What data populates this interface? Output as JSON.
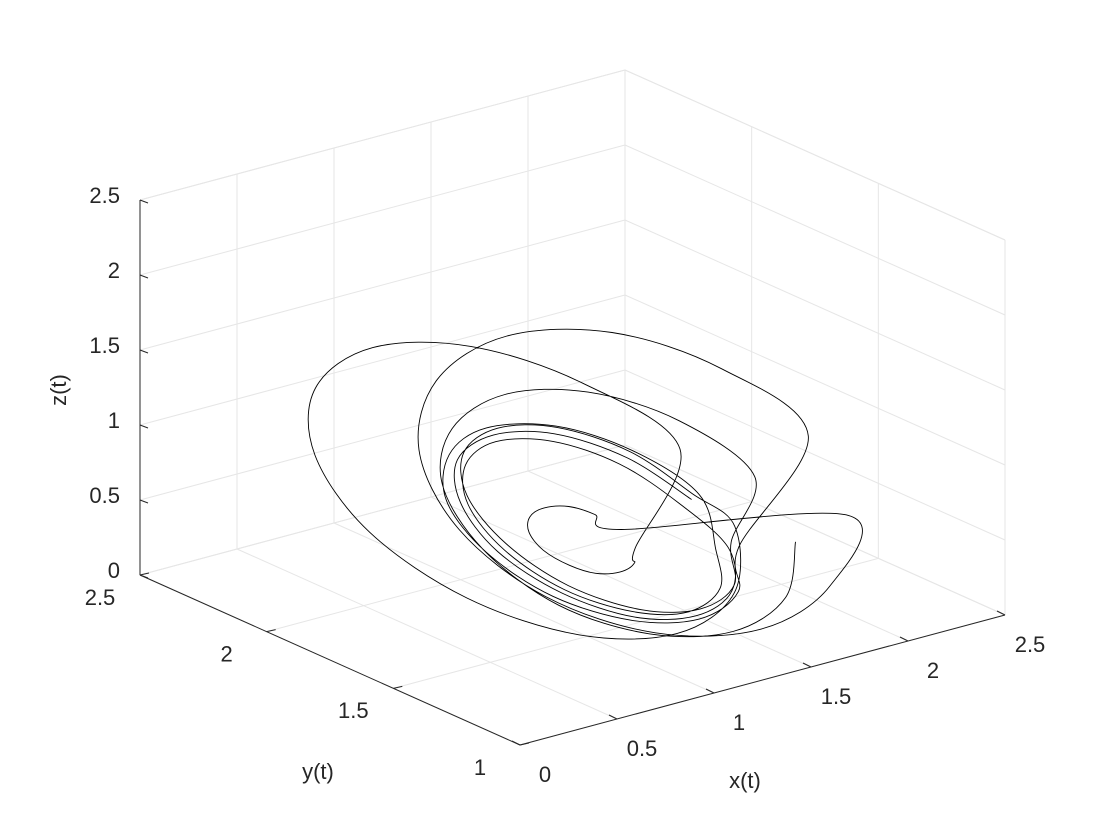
{
  "chart_data": {
    "type": "line3d",
    "xlabel": "x(t)",
    "ylabel": "y(t)",
    "zlabel": "z(t)",
    "color": "#000000",
    "grid": true,
    "xlim": [
      0,
      2.5
    ],
    "ylim": [
      1,
      2.5
    ],
    "zlim": [
      0,
      2.5
    ],
    "xticks": [
      0,
      0.5,
      1,
      1.5,
      2,
      2.5
    ],
    "yticks": [
      1,
      1.5,
      2,
      2.5
    ],
    "zticks": [
      0,
      0.5,
      1,
      1.5,
      2,
      2.5
    ],
    "x": [
      1.89,
      1.82,
      1.64,
      1.39,
      1.14,
      0.96,
      0.89,
      0.96,
      1.14,
      1.39,
      1.64,
      1.82,
      1.8,
      1.74,
      1.58,
      1.35,
      1.13,
      0.96,
      0.9,
      0.96,
      1.13,
      1.35,
      1.58,
      1.74,
      1.97,
      1.9,
      1.7,
      1.42,
      1.15,
      0.94,
      0.87,
      0.94,
      1.15,
      1.42,
      1.7,
      1.9,
      2.4,
      2.28,
      1.95,
      1.5,
      1.05,
      0.72,
      0.6,
      0.72,
      1.05,
      1.5,
      1.95,
      2.28,
      1.5,
      1.47,
      1.4,
      1.3,
      1.2,
      1.13,
      1.1,
      1.13,
      1.2,
      1.3,
      1.4,
      1.47,
      2,
      1.89,
      1.6,
      1.2,
      0.8,
      0.51,
      0.4,
      0.51,
      0.8,
      1.2,
      1.6,
      1.89,
      1.88,
      1.82,
      1.64,
      1.4,
      1.16,
      0.98,
      0.92,
      0.98,
      1.16,
      1.4,
      1.64,
      1.82,
      2.15,
      2.06,
      1.8,
      1.45,
      1.1,
      0.84,
      0.75,
      0.84,
      1.1,
      1.45,
      1.8,
      2.06
    ],
    "y": [
      1.77,
      1.97,
      2.12,
      2.17,
      2.12,
      1.97,
      1.77,
      1.57,
      1.42,
      1.37,
      1.42,
      1.57,
      1.75,
      1.94,
      2.08,
      2.13,
      2.08,
      1.94,
      1.75,
      1.56,
      1.42,
      1.37,
      1.42,
      1.56,
      1.8,
      2.01,
      2.16,
      2.22,
      2.16,
      2.01,
      1.8,
      1.59,
      1.44,
      1.38,
      1.44,
      1.59,
      1.7,
      1.95,
      2.13,
      2.2,
      2.13,
      1.95,
      1.7,
      1.45,
      1.27,
      1.2,
      1.27,
      1.45,
      1.75,
      1.83,
      1.88,
      1.9,
      1.88,
      1.83,
      1.75,
      1.67,
      1.62,
      1.6,
      1.62,
      1.67,
      1.9,
      2.2,
      2.42,
      2.5,
      2.42,
      2.2,
      1.9,
      1.6,
      1.38,
      1.3,
      1.38,
      1.6,
      1.76,
      1.96,
      2.11,
      2.16,
      2.11,
      1.96,
      1.76,
      1.56,
      1.41,
      1.36,
      1.41,
      1.56,
      1.72,
      1.95,
      2.11,
      2.17,
      2.11,
      1.95,
      1.72,
      1.49,
      1.33,
      1.27,
      1.33,
      1.49
    ],
    "z": [
      0.4,
      0.55,
      0.66,
      0.7,
      0.66,
      0.55,
      0.4,
      0.25,
      0.14,
      0.1,
      0.14,
      0.25,
      0.42,
      0.56,
      0.66,
      0.7,
      0.66,
      0.56,
      0.42,
      0.28,
      0.18,
      0.14,
      0.18,
      0.28,
      0.38,
      0.54,
      0.66,
      0.7,
      0.66,
      0.54,
      0.38,
      0.22,
      0.1,
      0.06,
      0.1,
      0.22,
      0.7,
      1,
      1.22,
      1.3,
      1.22,
      1,
      0.7,
      0.4,
      0.18,
      0.1,
      0.18,
      0.4,
      0.35,
      0.4,
      0.44,
      0.45,
      0.44,
      0.4,
      0.35,
      0.3,
      0.26,
      0.25,
      0.26,
      0.3,
      0.6,
      0.85,
      1.03,
      1.1,
      1.03,
      0.85,
      0.6,
      0.35,
      0.17,
      0.1,
      0.17,
      0.35,
      0.45,
      0.6,
      0.71,
      0.75,
      0.71,
      0.6,
      0.45,
      0.3,
      0.19,
      0.15,
      0.19,
      0.3,
      0.5,
      0.73,
      0.89,
      0.95,
      0.89,
      0.73,
      0.5,
      0.27,
      0.11,
      0.05,
      0.11,
      0.27
    ]
  }
}
